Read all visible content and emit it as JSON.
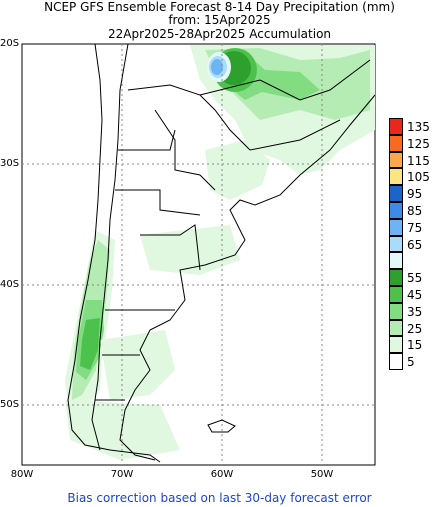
{
  "header": {
    "line1": "NCEP GFS Ensemble Forecast 8-14 Day Precipitation (mm)",
    "line2": "from: 15Apr2025",
    "line3": "22Apr2025-28Apr2025 Accumulation"
  },
  "axes": {
    "lat_labels": [
      "20S",
      "30S",
      "40S",
      "50S"
    ],
    "lon_labels": [
      "80W",
      "70W",
      "60W",
      "50W"
    ]
  },
  "legend": {
    "items": [
      {
        "label": "135",
        "color": "#e8281c"
      },
      {
        "label": "125",
        "color": "#f86a20"
      },
      {
        "label": "115",
        "color": "#fca848"
      },
      {
        "label": "105",
        "color": "#fce682"
      },
      {
        "label": "95",
        "color": "#1c64c8"
      },
      {
        "label": "85",
        "color": "#3c8ce6"
      },
      {
        "label": "75",
        "color": "#6cb4f4"
      },
      {
        "label": "65",
        "color": "#a8dcf8"
      },
      {
        "label": "",
        "color": "#e4f8fc"
      },
      {
        "label": "55",
        "color": "#2ea02e"
      },
      {
        "label": "45",
        "color": "#4cc24c"
      },
      {
        "label": "35",
        "color": "#82dc82"
      },
      {
        "label": "25",
        "color": "#b4ecb4"
      },
      {
        "label": "15",
        "color": "#e0f8e0"
      },
      {
        "label": "5",
        "color": "#ffffff"
      }
    ]
  },
  "footer": {
    "note": "Bias correction based on last 30-day forecast error"
  }
}
